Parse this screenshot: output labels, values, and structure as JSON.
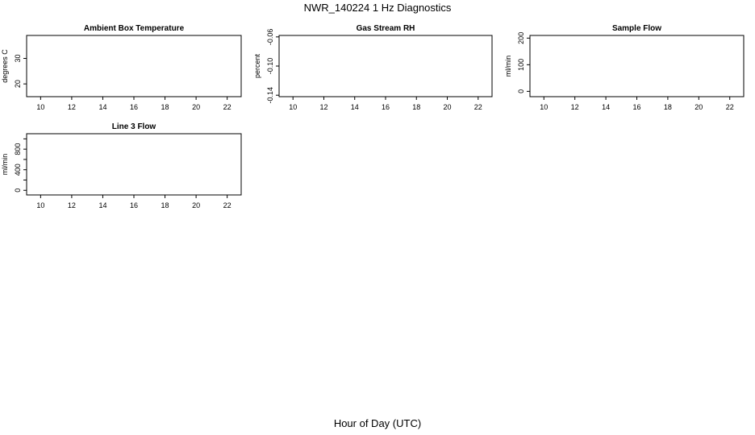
{
  "title": "NWR_140224  1 Hz Diagnostics",
  "xlabel": "Hour of Day (UTC)",
  "chart_data": [
    {
      "type": "line",
      "title": "Ambient Box Temperature",
      "ylabel": "degrees C",
      "xlabel": "",
      "xlim": [
        9.1,
        22.9
      ],
      "ylim": [
        15,
        39
      ],
      "xticks": [
        10,
        12,
        14,
        16,
        18,
        20,
        22
      ],
      "yticks": [
        20,
        30
      ],
      "series": []
    },
    {
      "type": "line",
      "title": "Gas Stream RH",
      "ylabel": "percent",
      "xlabel": "",
      "xlim": [
        9.1,
        22.9
      ],
      "ylim": [
        -0.142,
        -0.058
      ],
      "xticks": [
        10,
        12,
        14,
        16,
        18,
        20,
        22
      ],
      "yticks": [
        -0.14,
        -0.1,
        -0.06
      ],
      "ytick_labels": [
        "-0.14",
        "-0.10",
        "-0.06"
      ],
      "series": []
    },
    {
      "type": "line",
      "title": "Sample Flow",
      "ylabel": "ml/min",
      "xlabel": "",
      "xlim": [
        9.1,
        22.9
      ],
      "ylim": [
        -20,
        210
      ],
      "xticks": [
        10,
        12,
        14,
        16,
        18,
        20,
        22
      ],
      "yticks": [
        0,
        100,
        200
      ],
      "series": []
    },
    {
      "type": "line",
      "title": "Line 3 Flow",
      "ylabel": "ml/min",
      "xlabel": "",
      "xlim": [
        9.1,
        22.9
      ],
      "ylim": [
        -90,
        1100
      ],
      "xticks": [
        10,
        12,
        14,
        16,
        18,
        20,
        22
      ],
      "yticks": [
        0,
        400,
        800
      ],
      "minor_yticks": [
        200,
        600,
        1000
      ],
      "series": []
    }
  ]
}
